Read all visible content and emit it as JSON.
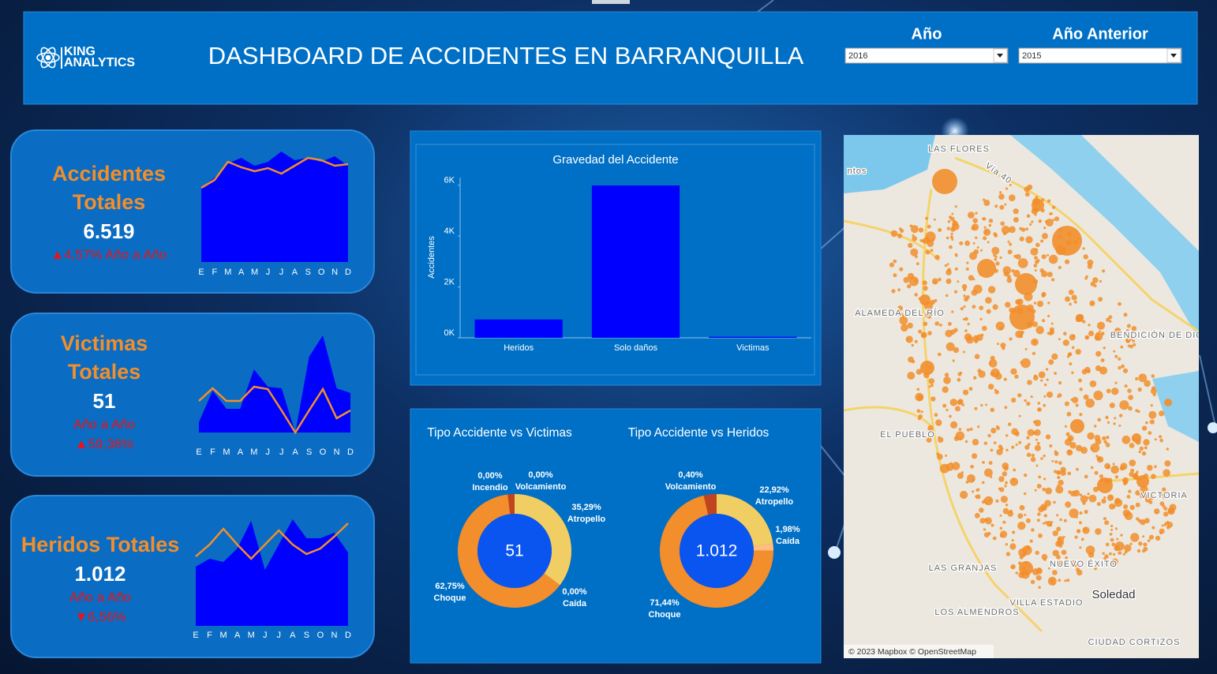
{
  "header": {
    "logo": [
      "KING",
      "ANALYTICS"
    ],
    "title": "DASHBOARD DE ACCIDENTES EN BARRANQUILLA",
    "filters": [
      {
        "label": "Año",
        "value": "2016"
      },
      {
        "label": "Año Anterior",
        "value": "2015"
      }
    ]
  },
  "months": [
    "E",
    "F",
    "M",
    "A",
    "M",
    "J",
    "J",
    "A",
    "S",
    "O",
    "N",
    "D"
  ],
  "kpis": [
    {
      "title": "Accidentes Totales",
      "value": "6.519",
      "change": "▲4,57% Año a Año",
      "area": [
        94,
        107,
        125,
        132,
        122,
        127,
        140,
        129,
        132,
        127,
        134,
        122
      ],
      "line": [
        94,
        104,
        127,
        120,
        115,
        119,
        112,
        122,
        132,
        129,
        122,
        124
      ]
    },
    {
      "title": "Victimas Totales",
      "value": "51",
      "period": "Año a Año",
      "change": "▲59,38%",
      "area": [
        13,
        53,
        30,
        30,
        80,
        58,
        56,
        0,
        96,
        123,
        56,
        50
      ],
      "line": [
        40,
        56,
        40,
        40,
        58,
        55,
        28,
        0,
        28,
        55,
        18,
        28
      ]
    },
    {
      "title": "Heridos Totales",
      "value": "1.012",
      "period": "Año a Año",
      "change": "▼6,56%",
      "area": [
        75,
        85,
        81,
        98,
        133,
        71,
        103,
        135,
        111,
        111,
        118,
        93
      ],
      "line": [
        88,
        103,
        123,
        103,
        85,
        103,
        121,
        103,
        91,
        98,
        113,
        130
      ]
    }
  ],
  "chart_data": {
    "type": "bar",
    "title": "Gravedad del Accidente",
    "y_label": "Accidentes",
    "categories": [
      "Heridos",
      "Solo daños",
      "Victimas"
    ],
    "values": [
      720,
      5990,
      40
    ],
    "color": "#0000ff",
    "ylim": [
      0,
      6300
    ],
    "yticks": [
      {
        "value": 0,
        "label": "0K"
      },
      {
        "value": 2000,
        "label": "2K"
      },
      {
        "value": 4000,
        "label": "4K"
      },
      {
        "value": 6000,
        "label": "6K"
      }
    ]
  },
  "donuts": [
    {
      "title": "Tipo Accidente vs Victimas",
      "center": "51",
      "slices": [
        {
          "name": "Atropello",
          "value": 35.29,
          "label": "35,29%",
          "color": "#f1ce63"
        },
        {
          "name": "Caída",
          "value": 0,
          "label": "0,00%",
          "color": "#ffbe7d"
        },
        {
          "name": "Choque",
          "value": 62.75,
          "label": "62,75%",
          "color": "#f28e2b"
        },
        {
          "name": "Volcamiento",
          "value": 0,
          "label": "0,00%",
          "color": "#c0451f"
        },
        {
          "name": "Incendio",
          "value": 0,
          "label": "0,00%",
          "color": "#d4562a"
        }
      ]
    },
    {
      "title": "Tipo Accidente vs Heridos",
      "center": "1.012",
      "slices": [
        {
          "name": "Atropello",
          "value": 22.92,
          "label": "22,92%",
          "color": "#f1ce63"
        },
        {
          "name": "Caída",
          "value": 1.98,
          "label": "1,98%",
          "color": "#ffbe7d"
        },
        {
          "name": "Choque",
          "value": 71.44,
          "label": "71,44%",
          "color": "#f28e2b"
        },
        {
          "name": "Volcamiento",
          "value": 0.4,
          "label": "0,40%",
          "color": "#c0451f"
        }
      ]
    }
  ],
  "map": {
    "labels": [
      "LAS FLORES",
      "Vía 40",
      "ntos",
      "ALAMEDA DEL RÍO",
      "BENDICIÓN DE DIOS",
      "EL PUEBLO",
      "VICTORIA",
      "NUEVO ÉXITO",
      "Soledad",
      "VILLA ESTADIO",
      "LAS GRANJAS",
      "LOS ALMENDROS",
      "CIUDAD CORTIZOS"
    ],
    "attribution": "© 2023 Mapbox © OpenStreetMap"
  }
}
